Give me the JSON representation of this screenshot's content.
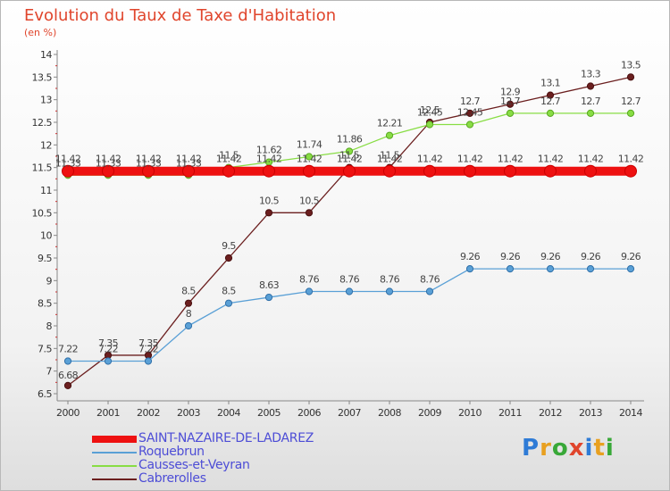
{
  "header": {
    "title": "Evolution du Taux de Taxe d'Habitation",
    "unit": "(en %)"
  },
  "logo": {
    "text": "Proxiti"
  },
  "chart_data": {
    "type": "line",
    "title": "Evolution du Taux de Taxe d'Habitation",
    "ylabel": "(en %)",
    "xlabel": "",
    "ylim": [
      6.5,
      14
    ],
    "yticks": [
      "6.5",
      "7",
      "7.5",
      "8",
      "8.5",
      "9",
      "9.5",
      "10",
      "10.5",
      "11",
      "11.5",
      "12",
      "12.5",
      "13",
      "13.5",
      "14"
    ],
    "categories": [
      "2000",
      "2001",
      "2002",
      "2003",
      "2004",
      "2005",
      "2006",
      "2007",
      "2008",
      "2009",
      "2010",
      "2011",
      "2012",
      "2013",
      "2014"
    ],
    "legend_position": "bottom-left",
    "grid": false,
    "series": [
      {
        "name": "SAINT-NAZAIRE-DE-LADAREZ",
        "color": "#ee1111",
        "values": [
          11.42,
          11.42,
          11.42,
          11.42,
          11.42,
          11.42,
          11.42,
          11.42,
          11.42,
          11.42,
          11.42,
          11.42,
          11.42,
          11.42,
          11.42
        ],
        "labels": [
          "11.42",
          "11.42",
          "11.42",
          "11.42",
          "11.42",
          "11.42",
          "11.42",
          "11.42",
          "11.42",
          "11.42",
          "11.42",
          "11.42",
          "11.42",
          "11.42",
          "11.42"
        ]
      },
      {
        "name": "Roquebrun",
        "color": "#5aa0d6",
        "values": [
          7.22,
          7.22,
          7.22,
          8,
          8.5,
          8.63,
          8.76,
          8.76,
          8.76,
          8.76,
          9.26,
          9.26,
          9.26,
          9.26,
          9.26
        ],
        "labels": [
          "7.22",
          "7.22",
          "7.22",
          "8",
          "8.5",
          "8.63",
          "8.76",
          "8.76",
          "8.76",
          "8.76",
          "9.26",
          "9.26",
          "9.26",
          "9.26",
          "9.26"
        ]
      },
      {
        "name": "Causses-et-Veyran",
        "color": "#88dd44",
        "values": [
          11.33,
          11.33,
          11.33,
          11.33,
          11.5,
          11.62,
          11.74,
          11.86,
          12.21,
          12.45,
          12.45,
          12.7,
          12.7,
          12.7,
          12.7
        ],
        "labels": [
          "11.33",
          "11.33",
          "11.33",
          "11.33",
          "11.5",
          "11.62",
          "11.74",
          "11.86",
          "12.21",
          "12.45",
          "12.45",
          "12.7",
          "12.7",
          "12.7",
          "12.7"
        ]
      },
      {
        "name": "Cabrerolles",
        "color": "#6b1f1f",
        "values": [
          6.68,
          7.35,
          7.35,
          8.5,
          9.5,
          10.5,
          10.5,
          11.5,
          11.5,
          12.5,
          12.7,
          12.9,
          13.1,
          13.3,
          13.5
        ],
        "labels": [
          "6.68",
          "7.35",
          "7.35",
          "8.5",
          "9.5",
          "10.5",
          "10.5",
          "11.5",
          "11.5",
          "12.5",
          "12.7",
          "12.9",
          "13.1",
          "13.3",
          "13.5"
        ]
      }
    ]
  }
}
